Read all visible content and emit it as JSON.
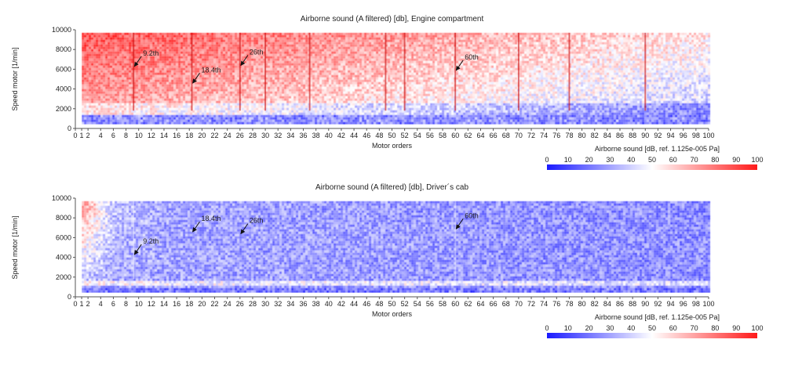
{
  "chart_data": [
    {
      "type": "heatmap",
      "title": "Airborne sound (A filtered) [db], Engine compartment",
      "xlabel": "Motor orders",
      "ylabel": "Speed motor [1/min]",
      "xlim": [
        0,
        100
      ],
      "ylim": [
        0,
        10000
      ],
      "x_ticks": [
        0,
        1,
        2,
        4,
        6,
        8,
        10,
        12,
        14,
        16,
        18,
        20,
        22,
        24,
        26,
        28,
        30,
        32,
        34,
        36,
        38,
        40,
        42,
        44,
        46,
        48,
        50,
        52,
        54,
        56,
        58,
        60,
        62,
        64,
        66,
        68,
        70,
        72,
        74,
        76,
        78,
        80,
        82,
        84,
        86,
        88,
        90,
        92,
        94,
        96,
        98,
        100
      ],
      "y_ticks": [
        0,
        2000,
        4000,
        6000,
        8000,
        10000
      ],
      "colorbar": {
        "label": "Airborne sound [dB, ref. 1.125e-005 Pa]",
        "ticks": [
          0,
          10,
          20,
          30,
          40,
          50,
          60,
          70,
          80,
          90,
          100
        ],
        "colors": [
          "#1a1aff",
          "#ffffff",
          "#ff1a1a"
        ]
      },
      "data_extent": {
        "x": [
          1,
          100
        ],
        "y": [
          600,
          9700
        ]
      },
      "order_lines": [
        9.2,
        18.4,
        26,
        30,
        37,
        49,
        52,
        60,
        70,
        78,
        90
      ],
      "annotations": [
        {
          "text": "9.2th",
          "x": 9.2,
          "y": 6200
        },
        {
          "text": "18.4th",
          "x": 18.4,
          "y": 4500
        },
        {
          "text": "26th",
          "x": 26,
          "y": 6300
        },
        {
          "text": "60th",
          "x": 60,
          "y": 5800
        }
      ],
      "level": "high"
    },
    {
      "type": "heatmap",
      "title": "Airborne sound (A filtered) [db], Driver´s cab",
      "xlabel": "Motor orders",
      "ylabel": "Speed motor [1/min]",
      "xlim": [
        0,
        100
      ],
      "ylim": [
        0,
        10000
      ],
      "x_ticks": [
        0,
        1,
        2,
        4,
        6,
        8,
        10,
        12,
        14,
        16,
        18,
        20,
        22,
        24,
        26,
        28,
        30,
        32,
        34,
        36,
        38,
        40,
        42,
        44,
        46,
        48,
        50,
        52,
        54,
        56,
        58,
        60,
        62,
        64,
        66,
        68,
        70,
        72,
        74,
        76,
        78,
        80,
        82,
        84,
        86,
        88,
        90,
        92,
        94,
        96,
        98,
        100
      ],
      "y_ticks": [
        0,
        2000,
        4000,
        6000,
        8000,
        10000
      ],
      "colorbar": {
        "label": "Airborne sound [dB, ref. 1.125e-005 Pa]",
        "ticks": [
          0,
          10,
          20,
          30,
          40,
          50,
          60,
          70,
          80,
          90,
          100
        ],
        "colors": [
          "#1a1aff",
          "#ffffff",
          "#ff1a1a"
        ]
      },
      "data_extent": {
        "x": [
          1,
          100
        ],
        "y": [
          600,
          9700
        ]
      },
      "order_lines": [
        9.2,
        60
      ],
      "annotations": [
        {
          "text": "9.2th",
          "x": 9.2,
          "y": 4200
        },
        {
          "text": "18.4th",
          "x": 18.4,
          "y": 6500
        },
        {
          "text": "26th",
          "x": 26,
          "y": 6300
        },
        {
          "text": "60th",
          "x": 60,
          "y": 6800
        }
      ],
      "level": "low"
    }
  ]
}
